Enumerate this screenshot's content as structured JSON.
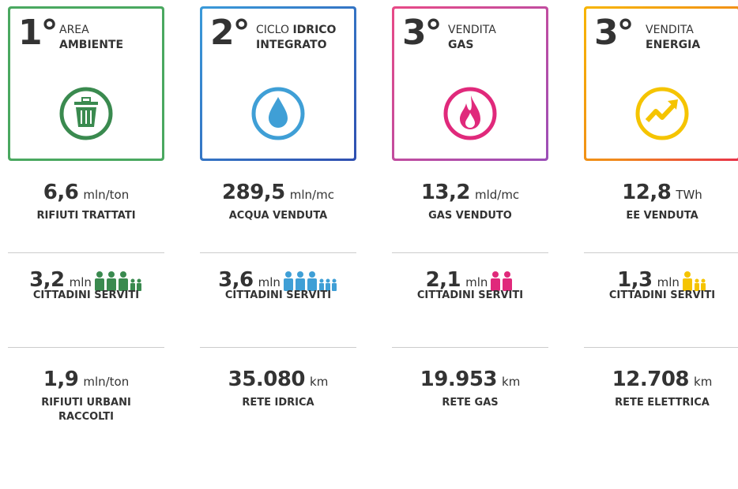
{
  "columns": [
    {
      "rank": "1°",
      "title": [
        [
          {
            "text": "AREA",
            "bold": false
          }
        ],
        [
          {
            "text": "AMBIENTE",
            "bold": true
          }
        ]
      ],
      "stats": [
        {
          "value": "6,6",
          "unit": "mln/ton",
          "label": "RIFIUTI TRATTATI"
        },
        {
          "value": "3,2",
          "unit": "mln",
          "label": "CITTADINI SERVITI"
        },
        {
          "value": "1,9",
          "unit": "mln/ton",
          "label": "RIFIUTI URBANI\nRACCOLTI"
        }
      ]
    },
    {
      "rank": "2°",
      "title": [
        [
          {
            "text": "CICLO",
            "bold": false
          },
          {
            "text": "IDRICO",
            "bold": true
          }
        ],
        [
          {
            "text": "INTEGRATO",
            "bold": true
          }
        ]
      ],
      "stats": [
        {
          "value": "289,5",
          "unit": "mln/mc",
          "label": "ACQUA VENDUTA"
        },
        {
          "value": "3,6",
          "unit": "mln",
          "label": "CITTADINI SERVITI"
        },
        {
          "value": "35.080",
          "unit": "km",
          "label": "RETE IDRICA"
        }
      ]
    },
    {
      "rank": "3°",
      "title": [
        [
          {
            "text": "VENDITA",
            "bold": false
          }
        ],
        [
          {
            "text": "GAS",
            "bold": true
          }
        ]
      ],
      "stats": [
        {
          "value": "13,2",
          "unit": "mld/mc",
          "label": "GAS VENDUTO"
        },
        {
          "value": "2,1",
          "unit": "mln",
          "label": "CITTADINI SERVITI"
        },
        {
          "value": "19.953",
          "unit": "km",
          "label": "RETE GAS"
        }
      ]
    },
    {
      "rank": "3°",
      "title": [
        [
          {
            "text": "VENDITA",
            "bold": false
          }
        ],
        [
          {
            "text": "ENERGIA",
            "bold": true
          }
        ]
      ],
      "stats": [
        {
          "value": "12,8",
          "unit": "TWh",
          "label": "EE VENDUTA"
        },
        {
          "value": "1,3",
          "unit": "mln",
          "label": "CITTADINI SERVITI"
        },
        {
          "value": "12.708",
          "unit": "km",
          "label": "RETE ELETTRICA"
        }
      ]
    }
  ]
}
